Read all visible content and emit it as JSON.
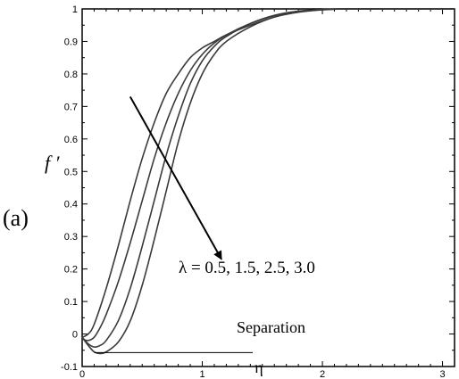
{
  "panel_label": "(a)",
  "chart_data": {
    "type": "line",
    "xlabel": "η",
    "ylabel": "f ′",
    "xlim": [
      0,
      3.1
    ],
    "ylim": [
      -0.1,
      1.0
    ],
    "xticks": [
      0,
      1,
      2,
      3
    ],
    "yticks": [
      -0.1,
      0,
      0.1,
      0.2,
      0.3,
      0.4,
      0.5,
      0.6,
      0.7,
      0.8,
      0.9,
      1
    ],
    "grid": false,
    "legend": "none",
    "series": [
      {
        "x": [
          0,
          0.05,
          0.1,
          0.2,
          0.3,
          0.4,
          0.5,
          0.6,
          0.7,
          0.8,
          0.9,
          1.0,
          1.1,
          1.2,
          1.4,
          1.6,
          1.8,
          2.0,
          2.2,
          2.5,
          3.1
        ],
        "y": [
          -0.01,
          0.0,
          0.03,
          0.14,
          0.27,
          0.41,
          0.54,
          0.65,
          0.74,
          0.8,
          0.85,
          0.88,
          0.9,
          0.92,
          0.95,
          0.975,
          0.99,
          0.997,
          1.0,
          1.0,
          1.0
        ]
      },
      {
        "x": [
          0,
          0.05,
          0.1,
          0.15,
          0.2,
          0.3,
          0.4,
          0.5,
          0.6,
          0.7,
          0.8,
          0.9,
          1.0,
          1.1,
          1.2,
          1.4,
          1.6,
          1.8,
          2.0,
          2.2,
          2.5,
          3.1
        ],
        "y": [
          -0.015,
          -0.02,
          -0.01,
          0.02,
          0.06,
          0.16,
          0.28,
          0.41,
          0.54,
          0.65,
          0.74,
          0.81,
          0.86,
          0.895,
          0.92,
          0.955,
          0.98,
          0.993,
          0.998,
          1.0,
          1.0,
          1.0
        ]
      },
      {
        "x": [
          0,
          0.05,
          0.1,
          0.15,
          0.2,
          0.3,
          0.4,
          0.5,
          0.6,
          0.7,
          0.8,
          0.9,
          1.0,
          1.1,
          1.2,
          1.4,
          1.6,
          1.8,
          2.0,
          2.2,
          2.5,
          3.1
        ],
        "y": [
          -0.01,
          -0.03,
          -0.04,
          -0.035,
          -0.02,
          0.04,
          0.14,
          0.27,
          0.41,
          0.55,
          0.67,
          0.77,
          0.84,
          0.885,
          0.915,
          0.955,
          0.98,
          0.993,
          0.998,
          1.0,
          1.0,
          1.0
        ]
      },
      {
        "x": [
          0,
          0.05,
          0.1,
          0.15,
          0.2,
          0.3,
          0.4,
          0.5,
          0.6,
          0.7,
          0.8,
          0.9,
          1.0,
          1.1,
          1.2,
          1.4,
          1.6,
          1.8,
          2.0,
          2.2,
          2.5,
          3.1
        ],
        "y": [
          -0.01,
          -0.035,
          -0.055,
          -0.06,
          -0.055,
          -0.025,
          0.04,
          0.15,
          0.29,
          0.44,
          0.59,
          0.71,
          0.8,
          0.86,
          0.9,
          0.945,
          0.975,
          0.99,
          0.998,
          1.0,
          1.0,
          1.0
        ]
      }
    ],
    "annotations": {
      "lambda_label": "λ = 0.5, 1.5, 2.5, 3.0",
      "separation_label": "Separation",
      "separation_line": {
        "x": [
          0.1,
          1.42
        ],
        "y": [
          -0.057,
          -0.057
        ]
      },
      "arrow": {
        "from": [
          0.4,
          0.73
        ],
        "to": [
          1.16,
          0.23
        ]
      }
    }
  }
}
